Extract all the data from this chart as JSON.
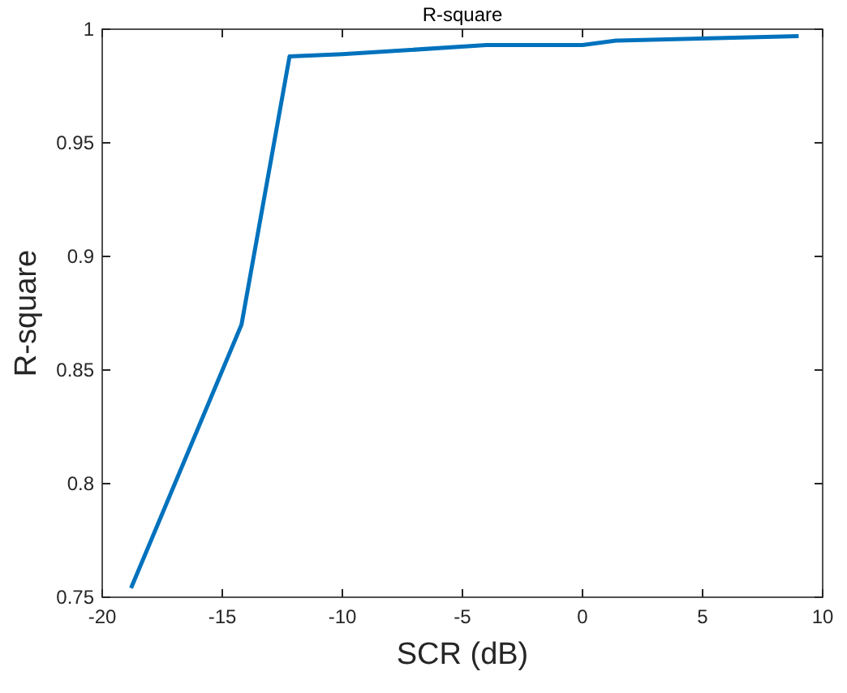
{
  "chart_data": {
    "type": "line",
    "title": "R-square",
    "xlabel": "SCR (dB)",
    "ylabel": "R-square",
    "x": [
      -18.8,
      -14.2,
      -12.2,
      -10,
      -4,
      0,
      1.4,
      9
    ],
    "series": [
      {
        "color": "#0072bd",
        "values": [
          0.754,
          0.87,
          0.988,
          0.989,
          0.993,
          0.993,
          0.995,
          0.997
        ]
      }
    ],
    "xlim": [
      -20,
      10
    ],
    "xticks": [
      -20,
      -15,
      -10,
      -5,
      0,
      5,
      10
    ],
    "ylim": [
      0.75,
      1
    ],
    "yticks": [
      0.75,
      0.8,
      0.85,
      0.9,
      0.95,
      1
    ],
    "grid": false,
    "marker": "none",
    "line_style": "solid"
  }
}
